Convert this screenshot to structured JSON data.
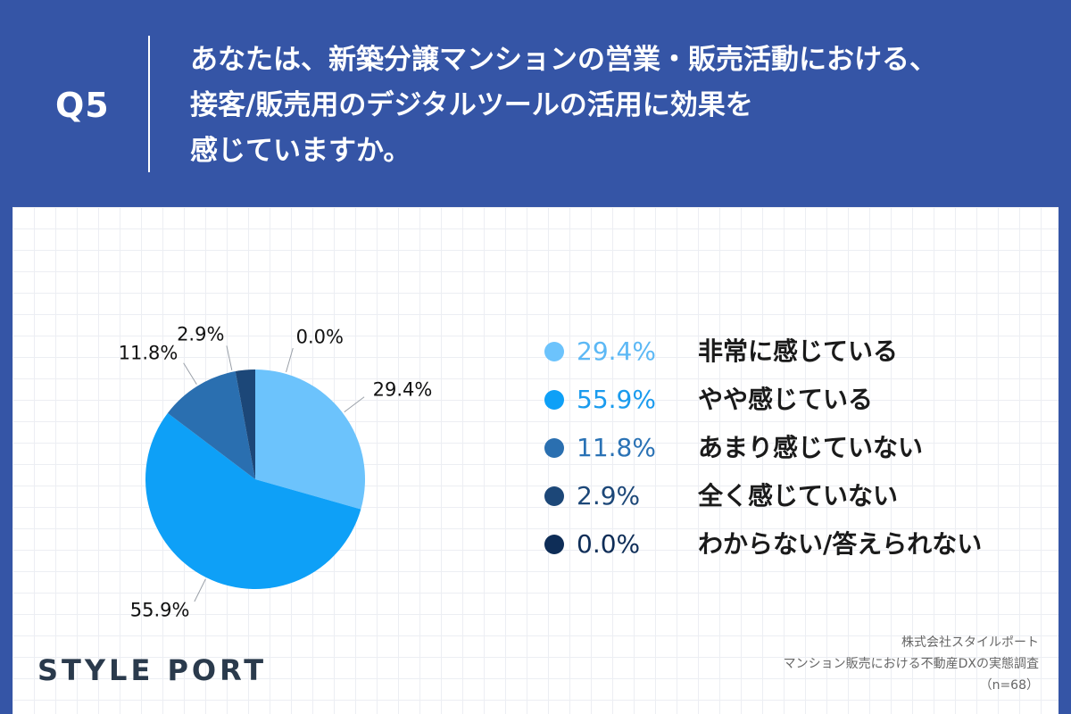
{
  "header": {
    "qnum": "Q5",
    "question_lines": [
      "あなたは、新築分譲マンションの営業・販売活動における、",
      "接客/販売用のデジタルツールの活用に効果を",
      "感じていますか。"
    ]
  },
  "brand": {
    "text": "STYLE PORT"
  },
  "source": {
    "lines": [
      "株式会社スタイルポート",
      "マンション販売における不動産DXの実態調査",
      "（n=68）"
    ]
  },
  "chart_data": {
    "type": "pie",
    "title": "",
    "unit": "%",
    "start_angle": "12 o'clock",
    "direction": "clockwise",
    "slices": [
      {
        "label": "非常に感じている",
        "value": 29.4,
        "value_label": "29.4%",
        "color": "#6cc3fc",
        "legend_text_color": "#5cb8f5"
      },
      {
        "label": "やや感じている",
        "value": 55.9,
        "value_label": "55.9%",
        "color": "#0ea0f7",
        "legend_text_color": "#1a9bee"
      },
      {
        "label": "あまり感じていない",
        "value": 11.8,
        "value_label": "11.8%",
        "color": "#2a6fb0",
        "legend_text_color": "#2a72b5"
      },
      {
        "label": "全く感じていない",
        "value": 2.9,
        "value_label": "2.9%",
        "color": "#1c4778",
        "legend_text_color": "#1c4778"
      },
      {
        "label": "わからない/答えられない",
        "value": 0.0,
        "value_label": "0.0%",
        "color": "#0e2d57",
        "legend_text_color": "#0e2d57"
      }
    ],
    "legend": {
      "placement": "right"
    }
  }
}
